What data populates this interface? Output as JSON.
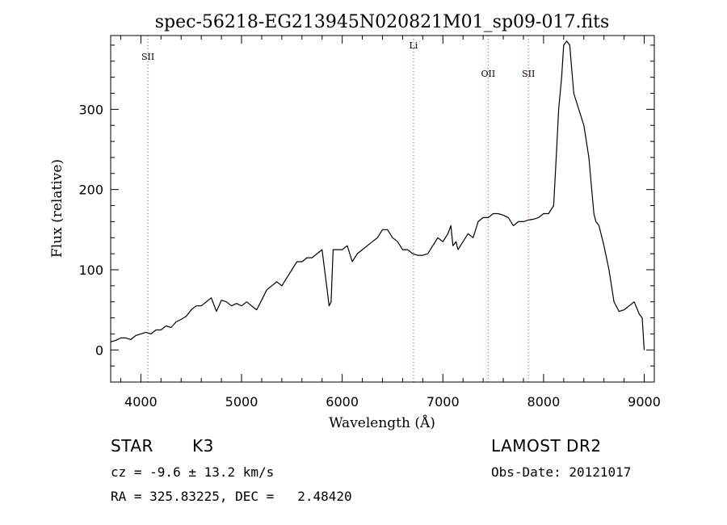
{
  "chart_data": {
    "type": "line",
    "title": "spec-56218-EG213945N020821M01_sp09-017.fits",
    "xlabel": "Wavelength (Å)",
    "ylabel": "Flux (relative)",
    "xlim": [
      3700,
      9100
    ],
    "ylim": [
      -40,
      392
    ],
    "x_ticks": [
      4000,
      5000,
      6000,
      7000,
      8000,
      9000
    ],
    "y_ticks": [
      0,
      100,
      200,
      300
    ],
    "grid": false,
    "lines": [
      {
        "label": "SII",
        "x": 4070
      },
      {
        "label": "Li",
        "x": 6708
      },
      {
        "label": "OII",
        "x": 7450
      },
      {
        "label": "SII",
        "x": 7850
      }
    ],
    "series": [
      {
        "x": [
          3700,
          3750,
          3800,
          3850,
          3900,
          3950,
          4000,
          4050,
          4100,
          4150,
          4200,
          4250,
          4300,
          4350,
          4400,
          4450,
          4500,
          4550,
          4600,
          4650,
          4700,
          4750,
          4800,
          4850,
          4900,
          4950,
          5000,
          5050,
          5100,
          5150,
          5200,
          5250,
          5300,
          5350,
          5400,
          5450,
          5500,
          5550,
          5600,
          5650,
          5700,
          5750,
          5800,
          5850,
          5870,
          5890,
          5910,
          5950,
          6000,
          6050,
          6100,
          6150,
          6200,
          6250,
          6300,
          6350,
          6400,
          6450,
          6500,
          6550,
          6600,
          6650,
          6700,
          6750,
          6800,
          6850,
          6900,
          6950,
          7000,
          7050,
          7080,
          7100,
          7130,
          7150,
          7200,
          7250,
          7300,
          7350,
          7400,
          7450,
          7500,
          7550,
          7600,
          7650,
          7700,
          7750,
          7800,
          7850,
          7900,
          7950,
          8000,
          8050,
          8100,
          8130,
          8150,
          8180,
          8200,
          8230,
          8260,
          8300,
          8350,
          8400,
          8450,
          8500,
          8520,
          8550,
          8600,
          8650,
          8700,
          8750,
          8800,
          8850,
          8900,
          8950,
          8980,
          9000
        ],
        "y": [
          10,
          12,
          15,
          15,
          13,
          18,
          20,
          22,
          20,
          25,
          25,
          30,
          28,
          35,
          38,
          42,
          50,
          55,
          55,
          60,
          65,
          48,
          62,
          60,
          55,
          58,
          55,
          60,
          55,
          50,
          62,
          75,
          80,
          85,
          80,
          90,
          100,
          110,
          110,
          115,
          115,
          120,
          125,
          75,
          55,
          60,
          125,
          125,
          125,
          130,
          110,
          120,
          125,
          130,
          135,
          140,
          150,
          150,
          140,
          135,
          125,
          125,
          120,
          118,
          118,
          120,
          130,
          140,
          135,
          145,
          155,
          130,
          135,
          125,
          135,
          145,
          140,
          160,
          165,
          165,
          170,
          170,
          168,
          165,
          155,
          160,
          160,
          162,
          163,
          165,
          170,
          170,
          180,
          250,
          300,
          340,
          380,
          385,
          380,
          320,
          300,
          280,
          240,
          170,
          160,
          155,
          130,
          100,
          60,
          48,
          50,
          55,
          60,
          45,
          40,
          0
        ]
      }
    ],
    "object_class": "STAR",
    "subclass": "K3",
    "survey": "LAMOST DR2",
    "cz_text": "cz = -9.6 ± 13.2 km/s",
    "obs_date_text": "Obs-Date: 20121017",
    "radec_text": "RA = 325.83225, DEC =   2.48420"
  }
}
